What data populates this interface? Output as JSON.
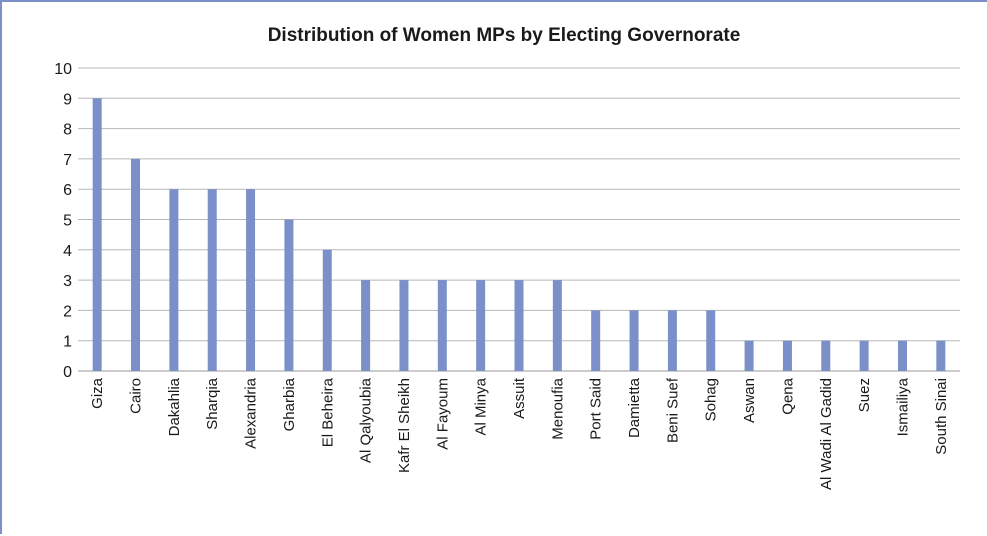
{
  "chart_data": {
    "type": "bar",
    "title": "Distribution of Women MPs by Electing Governorate",
    "xlabel": "",
    "ylabel": "",
    "ylim": [
      0,
      10
    ],
    "yticks": [
      0,
      1,
      2,
      3,
      4,
      5,
      6,
      7,
      8,
      9,
      10
    ],
    "grid": true,
    "legend": "none",
    "bar_color": "#7b8fc9",
    "categories": [
      "Giza",
      "Cairo",
      "Dakahlia",
      "Sharqia",
      "Alexandria",
      "Gharbia",
      "El Beheira",
      "Al Qalyoubia",
      "Kafr El Sheikh",
      "Al Fayoum",
      "Al Minya",
      "Assuit",
      "Menoufia",
      "Port Said",
      "Damietta",
      "Beni Suef",
      "Sohag",
      "Aswan",
      "Qena",
      "Al Wadi Al Gadid",
      "Suez",
      "Ismailiya",
      "South Sinai"
    ],
    "values": [
      9,
      7,
      6,
      6,
      6,
      5,
      4,
      3,
      3,
      3,
      3,
      3,
      3,
      2,
      2,
      2,
      2,
      1,
      1,
      1,
      1,
      1,
      1
    ]
  }
}
